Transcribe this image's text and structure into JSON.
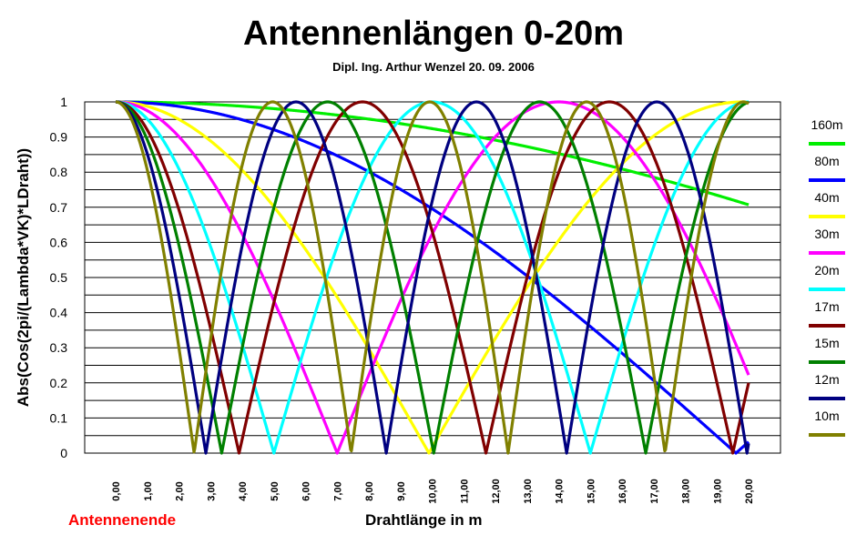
{
  "chart_data": {
    "type": "line",
    "title": "Antennenlängen 0-20m",
    "subtitle": "Dipl. Ing. Arthur Wenzel  20. 09. 2006",
    "ylabel": "Abs(Cos(2pi/(Lambda*VK)*LDraht))",
    "xlabel": "Drahtlänge in m",
    "annotation": "Antennenende",
    "xlim": [
      0,
      20
    ],
    "ylim": [
      0,
      1
    ],
    "grid": "horizontal",
    "legend_position": "right",
    "x_tick_labels": [
      "0,00",
      "1,00",
      "2,00",
      "3,00",
      "4,00",
      "5,00",
      "6,00",
      "7,00",
      "8,00",
      "9,00",
      "10,00",
      "11,00",
      "12,00",
      "13,00",
      "14,00",
      "15,00",
      "16,00",
      "17,00",
      "18,00",
      "19,00",
      "20,00"
    ],
    "y_tick_labels": [
      "0",
      "0.1",
      "0.2",
      "0.3",
      "0.4",
      "0.5",
      "0.6",
      "0.7",
      "0.8",
      "0.9",
      "1"
    ],
    "series": [
      {
        "name": "160m",
        "color": "#00ee00",
        "zero_period_m": 80.0
      },
      {
        "name": "80m",
        "color": "#0000ff",
        "zero_period_m": 39.2
      },
      {
        "name": "40m",
        "color": "#ffff00",
        "zero_period_m": 19.8
      },
      {
        "name": "30m",
        "color": "#ff00ff",
        "zero_period_m": 14.0
      },
      {
        "name": "20m",
        "color": "#00ffff",
        "zero_period_m": 10.0
      },
      {
        "name": "17m",
        "color": "#800000",
        "zero_period_m": 7.8
      },
      {
        "name": "15m",
        "color": "#008000",
        "zero_period_m": 6.7
      },
      {
        "name": "12m",
        "color": "#000080",
        "zero_period_m": 5.7
      },
      {
        "name": "10m",
        "color": "#808000",
        "zero_period_m": 4.96
      }
    ]
  }
}
